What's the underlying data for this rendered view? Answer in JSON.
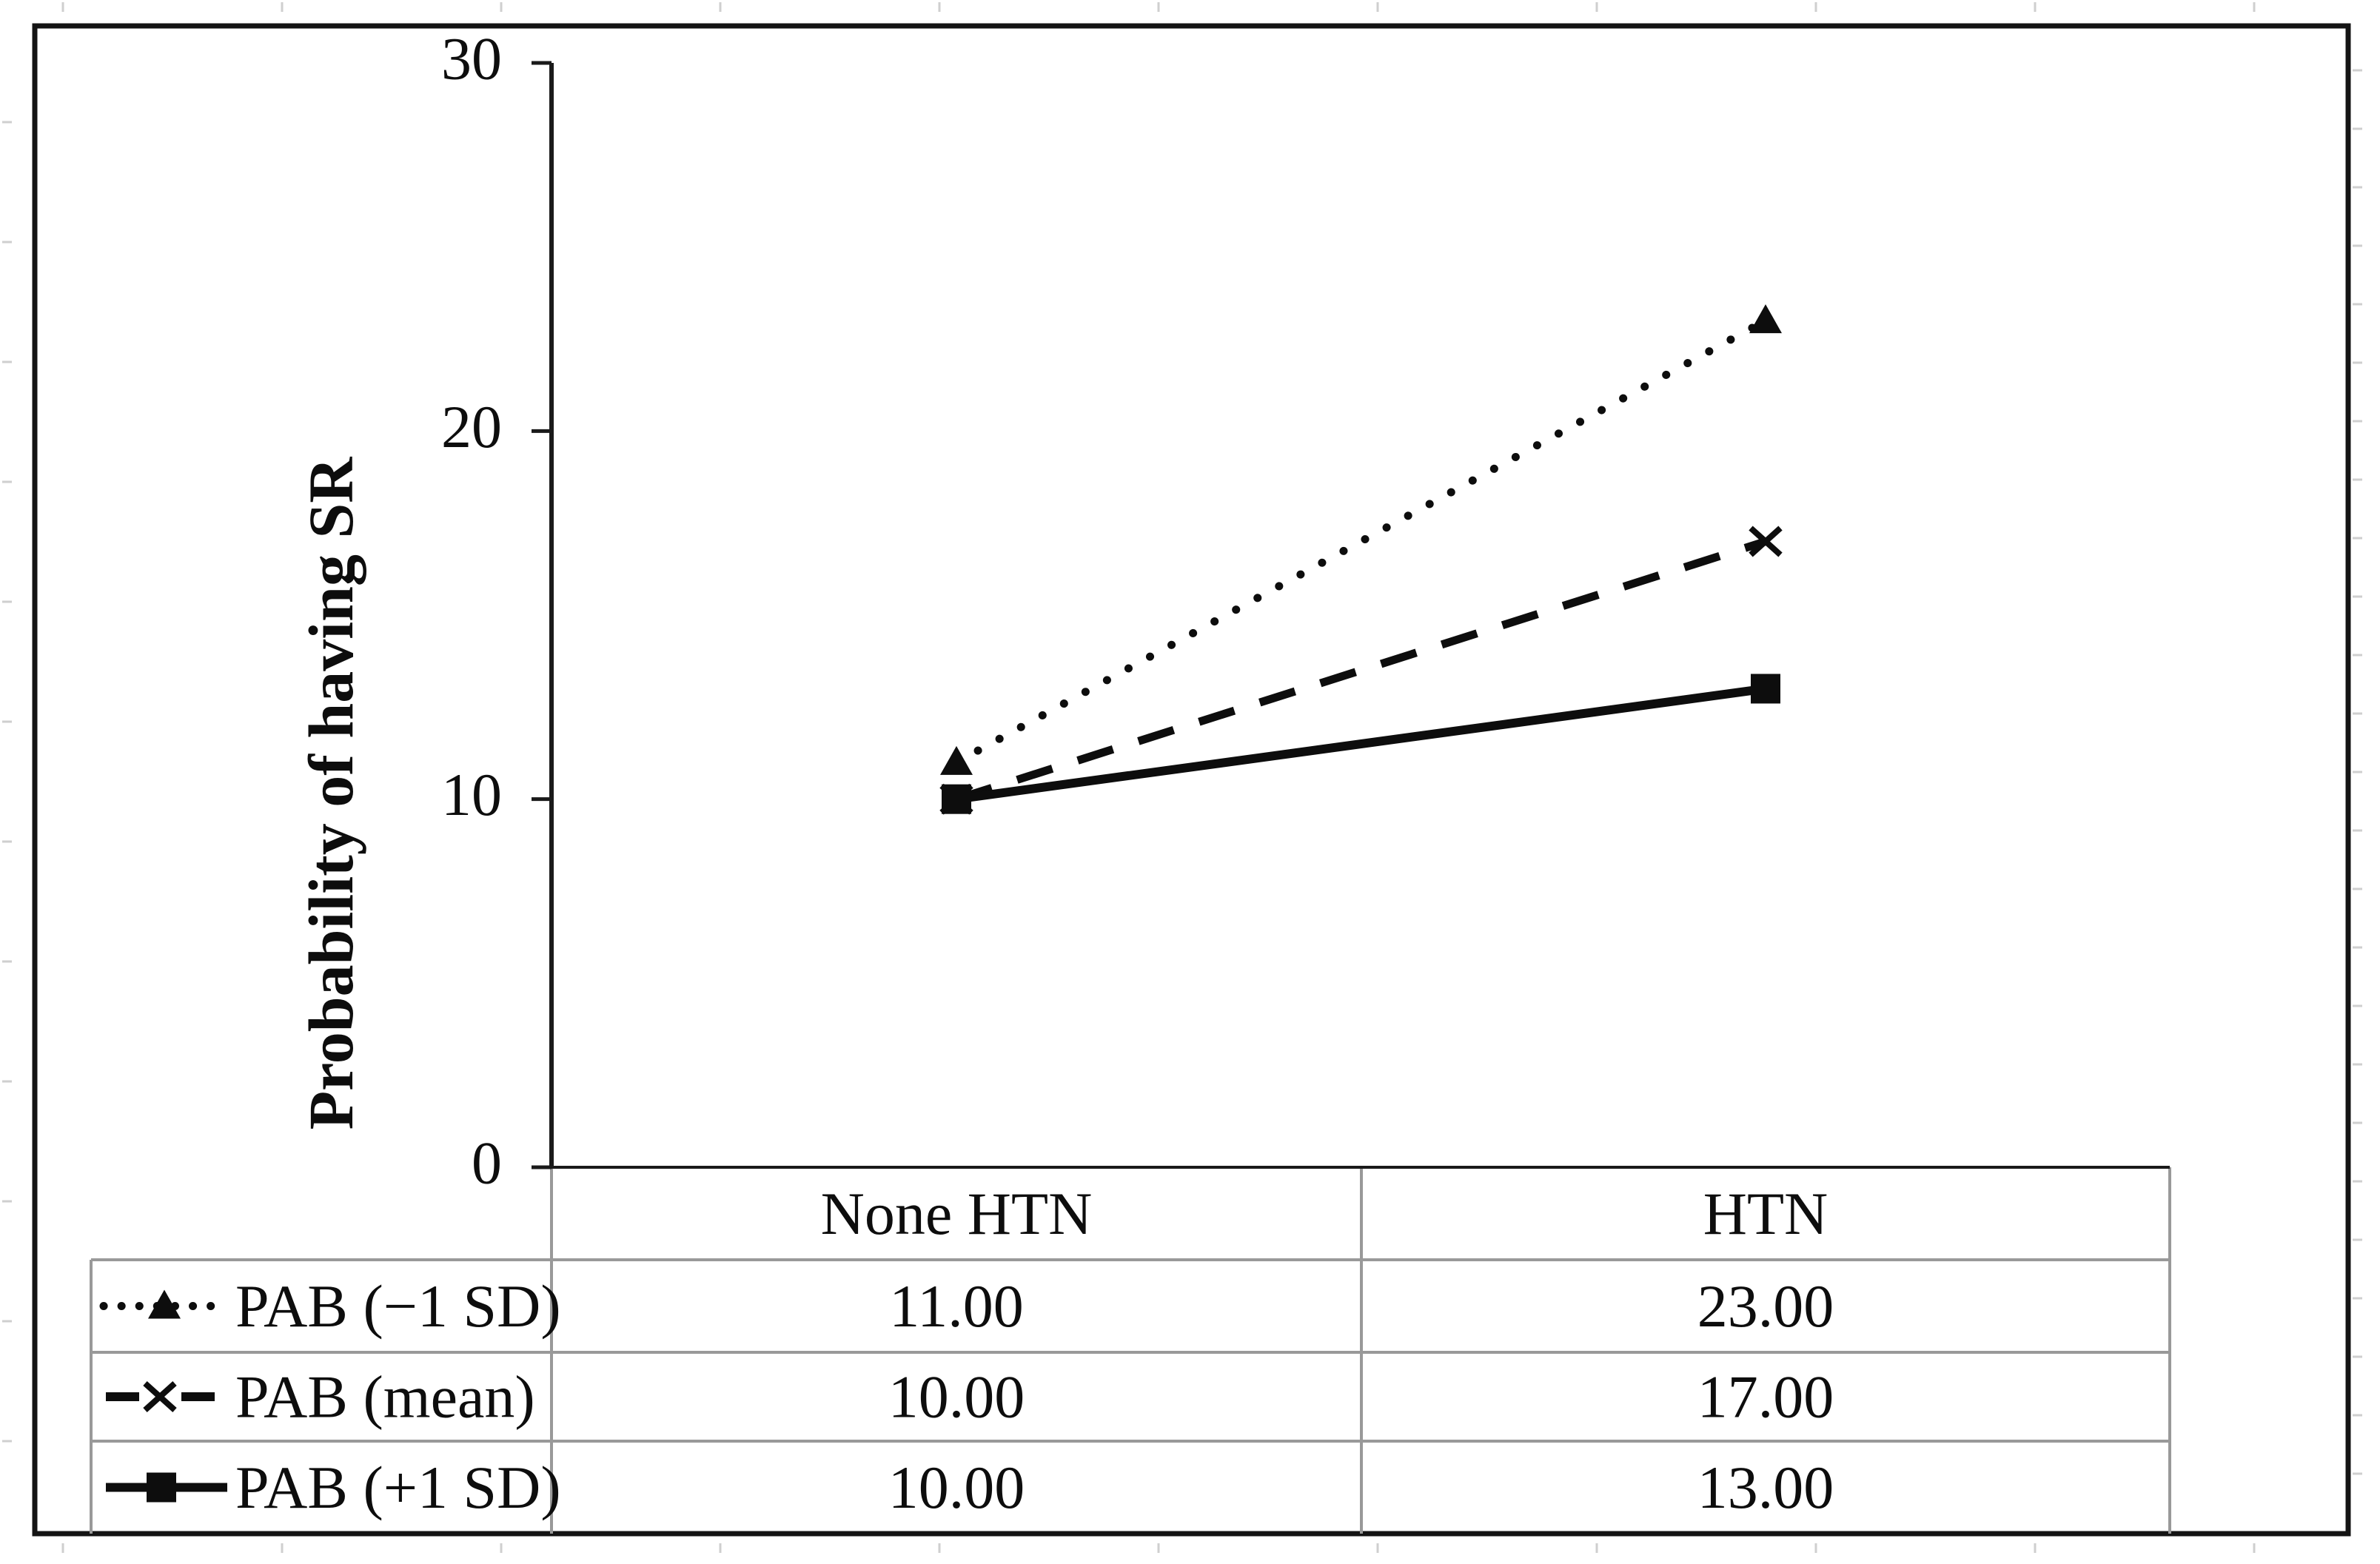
{
  "figure": {
    "background": "#ffffff",
    "border_color": "#141414"
  },
  "chart_data": {
    "type": "line",
    "categories": [
      "None HTN",
      "HTN"
    ],
    "series": [
      {
        "name": "PAB (−1 SD)",
        "values": [
          11,
          23
        ],
        "line": "dotted",
        "marker": "triangle"
      },
      {
        "name": "PAB (mean)",
        "values": [
          10,
          17
        ],
        "line": "dashed",
        "marker": "x"
      },
      {
        "name": "PAB (+1 SD)",
        "values": [
          10,
          13
        ],
        "line": "solid",
        "marker": "square"
      }
    ],
    "title": "",
    "xlabel": "",
    "ylabel": "Probability of having SR",
    "ylim": [
      0,
      30
    ],
    "yticks": [
      "0",
      "10",
      "20",
      "30"
    ],
    "grid": false,
    "legend_position": "data-table-left-column",
    "data_table": {
      "col_headers": [
        "None HTN",
        "HTN"
      ],
      "rows": [
        {
          "label": "PAB (−1 SD)",
          "values": [
            "11.00",
            "23.00"
          ]
        },
        {
          "label": "PAB (mean)",
          "values": [
            "10.00",
            "17.00"
          ]
        },
        {
          "label": "PAB (+1 SD)",
          "values": [
            "10.00",
            "13.00"
          ]
        }
      ]
    },
    "colors": {
      "series": "#0d0d0d",
      "axis": "#1a1a1a",
      "table_grid": "#999999",
      "sheet_artifact": "#cfcfcf"
    }
  }
}
